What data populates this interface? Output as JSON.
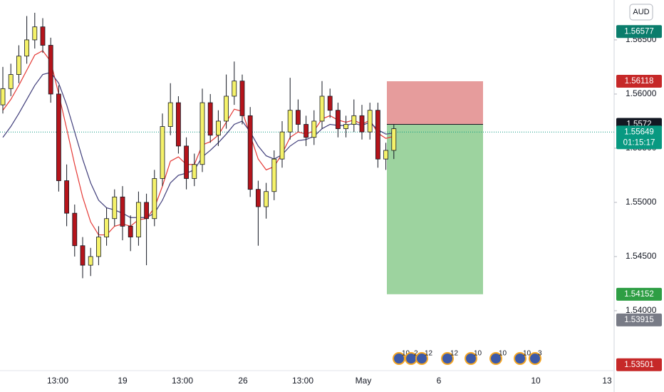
{
  "chart_data": {
    "type": "candlestick",
    "currency": "AUD",
    "ylim": [
      1.53447,
      1.56868
    ],
    "yticks": [
      {
        "value": 1.565,
        "label": "1.56500"
      },
      {
        "value": 1.56,
        "label": "1.56000"
      },
      {
        "value": 1.555,
        "label": "1.55500"
      },
      {
        "value": 1.55,
        "label": "1.55000"
      },
      {
        "value": 1.545,
        "label": "1.54500"
      },
      {
        "value": 1.54,
        "label": "1.54000"
      }
    ],
    "grid": false,
    "x_labels": [
      "13:00",
      "19",
      "13:00",
      "26",
      "13:00",
      "May",
      "6",
      "10",
      "13"
    ],
    "up_color": "#f5f26a",
    "down_color": "#b5141b",
    "open": [
      1.559,
      1.5605,
      1.5618,
      1.5635,
      1.565,
      1.5662,
      1.5645,
      1.56,
      1.552,
      1.549,
      1.546,
      1.5442,
      1.545,
      1.5468,
      1.5485,
      1.5505,
      1.5478,
      1.5468,
      1.55,
      1.5485,
      1.5522,
      1.557,
      1.5592,
      1.5552,
      1.5522,
      1.5535,
      1.5592,
      1.5562,
      1.5575,
      1.5598,
      1.5612,
      1.558,
      1.5512,
      1.5496,
      1.551,
      1.554,
      1.5565,
      1.5585,
      1.5572,
      1.556,
      1.5575,
      1.5598,
      1.5585,
      1.5568,
      1.5572,
      1.558,
      1.5565,
      1.5585,
      1.554,
      1.5548
    ],
    "high": [
      1.5625,
      1.5628,
      1.5645,
      1.5672,
      1.5675,
      1.567,
      1.5652,
      1.5608,
      1.5535,
      1.5498,
      1.5468,
      1.5458,
      1.5478,
      1.5495,
      1.5512,
      1.5515,
      1.5488,
      1.551,
      1.5508,
      1.553,
      1.5582,
      1.561,
      1.5598,
      1.556,
      1.5545,
      1.5605,
      1.56,
      1.5585,
      1.5618,
      1.563,
      1.5618,
      1.5588,
      1.552,
      1.5518,
      1.5548,
      1.5575,
      1.5615,
      1.5595,
      1.558,
      1.5585,
      1.5612,
      1.5605,
      1.5592,
      1.558,
      1.5595,
      1.559,
      1.5592,
      1.5592,
      1.5555,
      1.5572
    ],
    "low": [
      1.5582,
      1.5598,
      1.561,
      1.5628,
      1.5642,
      1.5638,
      1.5592,
      1.551,
      1.5478,
      1.545,
      1.543,
      1.5432,
      1.5442,
      1.546,
      1.5478,
      1.5465,
      1.5455,
      1.546,
      1.5442,
      1.5478,
      1.5515,
      1.5562,
      1.5545,
      1.5512,
      1.5515,
      1.5528,
      1.5555,
      1.5552,
      1.5568,
      1.559,
      1.5572,
      1.5505,
      1.546,
      1.5485,
      1.5502,
      1.5532,
      1.5558,
      1.5565,
      1.5552,
      1.5553,
      1.5568,
      1.5578,
      1.556,
      1.556,
      1.5565,
      1.5558,
      1.5558,
      1.5532,
      1.553,
      1.554
    ],
    "close": [
      1.5605,
      1.5618,
      1.5635,
      1.565,
      1.5662,
      1.5645,
      1.56,
      1.552,
      1.549,
      1.546,
      1.5442,
      1.545,
      1.5468,
      1.5485,
      1.5505,
      1.5478,
      1.5468,
      1.55,
      1.5485,
      1.5522,
      1.557,
      1.5592,
      1.5552,
      1.5522,
      1.5535,
      1.5592,
      1.5562,
      1.5575,
      1.5598,
      1.5612,
      1.558,
      1.5512,
      1.5496,
      1.551,
      1.554,
      1.5565,
      1.5585,
      1.5572,
      1.556,
      1.5575,
      1.5598,
      1.5585,
      1.5568,
      1.5572,
      1.558,
      1.5565,
      1.5585,
      1.554,
      1.5548,
      1.5568
    ],
    "lines": [
      {
        "color": "#e53935",
        "values": [
          1.5585,
          1.5595,
          1.5608,
          1.5622,
          1.5636,
          1.564,
          1.563,
          1.56,
          1.5568,
          1.5535,
          1.5505,
          1.5482,
          1.547,
          1.547,
          1.5478,
          1.548,
          1.5478,
          1.5484,
          1.5485,
          1.5495,
          1.5515,
          1.5538,
          1.5542,
          1.5535,
          1.5535,
          1.5553,
          1.5556,
          1.5562,
          1.5574,
          1.5586,
          1.5584,
          1.5562,
          1.554,
          1.553,
          1.5533,
          1.5545,
          1.556,
          1.5565,
          1.5563,
          1.5566,
          1.5577,
          1.558,
          1.5576,
          1.5574,
          1.5576,
          1.5572,
          1.5576,
          1.5564,
          1.5559,
          1.5561
        ]
      },
      {
        "color": "#3f3d7a",
        "values": [
          1.556,
          1.557,
          1.5582,
          1.5595,
          1.5608,
          1.5618,
          1.562,
          1.561,
          1.559,
          1.5565,
          1.554,
          1.5518,
          1.5502,
          1.5495,
          1.5493,
          1.549,
          1.5486,
          1.5486,
          1.5486,
          1.549,
          1.5502,
          1.5518,
          1.5525,
          1.5527,
          1.553,
          1.5542,
          1.5548,
          1.5555,
          1.5563,
          1.5572,
          1.5575,
          1.5565,
          1.5552,
          1.5543,
          1.554,
          1.5544,
          1.5552,
          1.5557,
          1.5558,
          1.5561,
          1.5568,
          1.5572,
          1.5571,
          1.5571,
          1.5573,
          1.5571,
          1.5574,
          1.5567,
          1.5563,
          1.5564
        ]
      }
    ],
    "position": {
      "entry": 1.5572,
      "stop": 1.56118,
      "target": 1.54152
    },
    "current_price": 1.55649,
    "countdown": "01:15:17",
    "price_tags": [
      {
        "value": 1.56577,
        "color": "#0a7d6c"
      },
      {
        "value": 1.56118,
        "color": "#c62828"
      },
      {
        "value": 1.5572,
        "color": "#131722"
      },
      {
        "value": 1.55649,
        "color": "#089981"
      },
      {
        "value": 1.54152,
        "color": "#2e9e44"
      },
      {
        "value": 1.53915,
        "color": "#787b86"
      },
      {
        "value": 1.53501,
        "color": "#c62828"
      }
    ],
    "events": [
      "10",
      "2",
      "12",
      "12",
      "10",
      "10",
      "10",
      "3"
    ]
  }
}
